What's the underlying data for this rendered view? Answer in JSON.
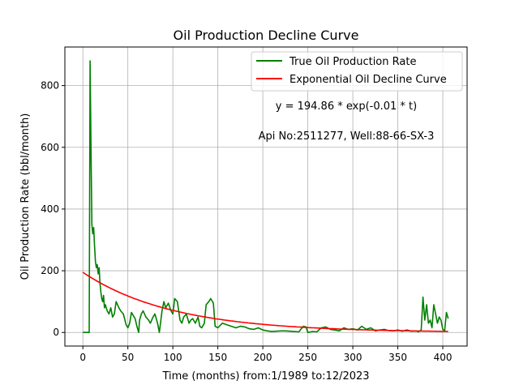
{
  "chart_data": {
    "type": "line",
    "title": "Oil Production Decline Curve",
    "xlabel": "Time (months) from:1/1989 to:12/2023",
    "ylabel": "Oil Production Rate (bbl/month)",
    "xlim": [
      -20,
      427
    ],
    "ylim": [
      -44,
      925
    ],
    "xticks": [
      0,
      50,
      100,
      150,
      200,
      250,
      300,
      350,
      400
    ],
    "yticks": [
      0,
      200,
      400,
      600,
      800
    ],
    "grid": true,
    "legend_position": "top-right",
    "annotations": {
      "equation": "y = 194.86 * exp(-0.01 * t)",
      "well": "Api No:2511277, Well:88-66-SX-3"
    },
    "series": [
      {
        "name": "True Oil Production Rate",
        "color": "#008000",
        "x": [
          0,
          5,
          6,
          7,
          8,
          9,
          10,
          11,
          12,
          13,
          14,
          15,
          16,
          17,
          18,
          19,
          20,
          21,
          22,
          23,
          24,
          25,
          27,
          29,
          31,
          33,
          35,
          37,
          40,
          42,
          45,
          48,
          50,
          52,
          54,
          56,
          58,
          60,
          62,
          63,
          65,
          67,
          70,
          73,
          75,
          78,
          80,
          83,
          85,
          88,
          90,
          92,
          95,
          98,
          100,
          102,
          105,
          108,
          110,
          112,
          115,
          118,
          120,
          122,
          125,
          128,
          130,
          132,
          135,
          137,
          140,
          142,
          145,
          147,
          150,
          155,
          160,
          165,
          170,
          175,
          180,
          185,
          190,
          195,
          200,
          205,
          210,
          215,
          220,
          225,
          230,
          235,
          240,
          245,
          248,
          250,
          255,
          260,
          265,
          270,
          275,
          280,
          285,
          290,
          295,
          300,
          305,
          310,
          315,
          320,
          325,
          330,
          335,
          340,
          345,
          350,
          355,
          360,
          365,
          370,
          373,
          376,
          378,
          380,
          382,
          384,
          386,
          388,
          390,
          392,
          394,
          396,
          398,
          400,
          402,
          404,
          406
        ],
        "y": [
          0,
          0,
          0,
          0,
          880,
          600,
          350,
          320,
          340,
          280,
          230,
          210,
          220,
          190,
          210,
          160,
          130,
          110,
          100,
          120,
          80,
          90,
          70,
          60,
          80,
          50,
          60,
          100,
          80,
          70,
          60,
          25,
          15,
          30,
          65,
          55,
          45,
          20,
          0,
          40,
          60,
          70,
          50,
          40,
          30,
          50,
          60,
          30,
          0,
          70,
          100,
          80,
          95,
          70,
          60,
          110,
          100,
          40,
          30,
          50,
          60,
          30,
          40,
          45,
          30,
          50,
          20,
          15,
          30,
          90,
          100,
          110,
          95,
          20,
          15,
          30,
          25,
          20,
          15,
          20,
          18,
          12,
          10,
          15,
          8,
          5,
          3,
          4,
          5,
          5,
          4,
          3,
          2,
          20,
          18,
          0,
          3,
          2,
          15,
          18,
          10,
          8,
          5,
          15,
          10,
          12,
          8,
          20,
          10,
          15,
          5,
          8,
          10,
          6,
          5,
          8,
          4,
          8,
          4,
          5,
          2,
          8,
          115,
          40,
          90,
          30,
          40,
          15,
          90,
          60,
          30,
          50,
          40,
          10,
          5,
          65,
          45
        ]
      },
      {
        "name": "Exponential Oil Decline Curve",
        "color": "#ff0000",
        "fit": {
          "a": 194.86,
          "b": 0.01,
          "t_start": 0,
          "t_end": 406
        }
      }
    ]
  }
}
